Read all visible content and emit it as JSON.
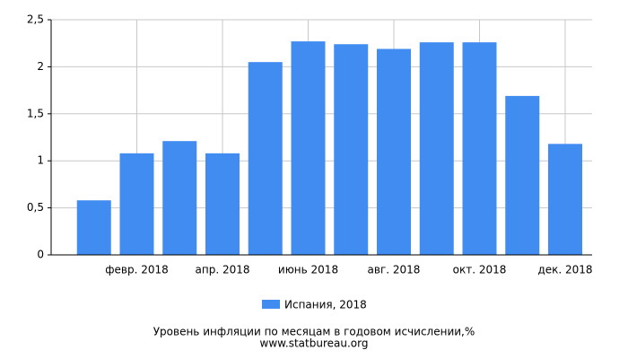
{
  "chart_data": {
    "type": "bar",
    "title": "Уровень инфляции по месяцам в годовом исчислении,%",
    "source": "www.statbureau.org",
    "categories": [
      null,
      "февр. 2018",
      null,
      "апр. 2018",
      null,
      "июнь 2018",
      null,
      "авг. 2018",
      null,
      "окт. 2018",
      null,
      "дек. 2018"
    ],
    "series": [
      {
        "name": "Испания, 2018",
        "color": "#418cf0",
        "values": [
          0.58,
          1.08,
          1.21,
          1.08,
          2.05,
          2.27,
          2.24,
          2.19,
          2.26,
          2.26,
          1.69,
          1.18
        ]
      }
    ],
    "ylim": [
      0,
      2.5
    ],
    "yticks": [
      {
        "value": 0,
        "label": "0"
      },
      {
        "value": 0.5,
        "label": "0,5"
      },
      {
        "value": 1,
        "label": "1"
      },
      {
        "value": 1.5,
        "label": "1,5"
      },
      {
        "value": 2,
        "label": "2"
      },
      {
        "value": 2.5,
        "label": "2,5"
      }
    ],
    "grid": true
  }
}
